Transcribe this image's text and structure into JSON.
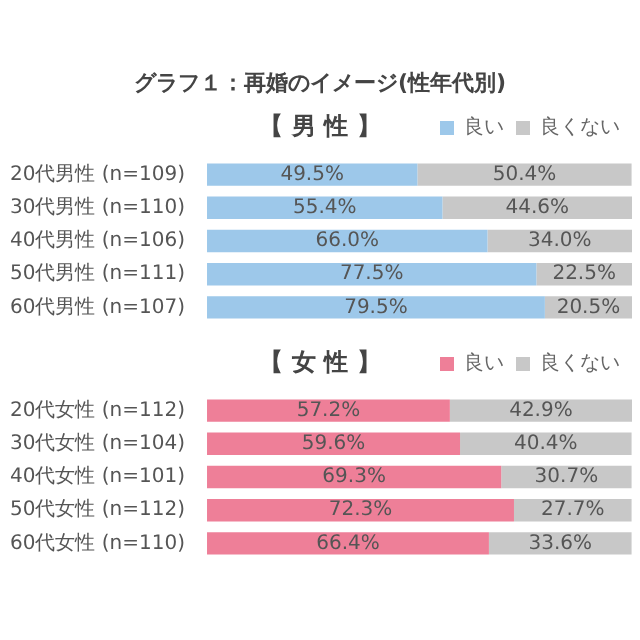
{
  "chart_data": [
    {
      "type": "bar",
      "title": "グラフ１：再婚のイメージ(性年代別)",
      "subtitle": "【 男 性 】",
      "orientation": "horizontal",
      "stacked": true,
      "legend": "top right",
      "categories": [
        "20代男性 (n=109)",
        "30代男性 (n=110)",
        "40代男性 (n=106)",
        "50代男性 (n=111)",
        "60代男性 (n=107)"
      ],
      "series": [
        {
          "name": "良い",
          "color": "#9dc8ea",
          "values": [
            49.5,
            55.4,
            66.0,
            77.5,
            79.5
          ],
          "value_labels": [
            "49.5%",
            "55.4%",
            "66.0%",
            "77.5%",
            "79.5%"
          ]
        },
        {
          "name": "良くない",
          "color": "#c8c8c8",
          "values": [
            50.4,
            44.6,
            34.0,
            22.5,
            20.5
          ],
          "value_labels": [
            "50.4%",
            "44.6%",
            "34.0%",
            "22.5%",
            "20.5%"
          ]
        }
      ]
    },
    {
      "type": "bar",
      "subtitle": "【 女 性 】",
      "orientation": "horizontal",
      "stacked": true,
      "legend": "top right",
      "categories": [
        "20代女性 (n=112)",
        "30代女性 (n=104)",
        "40代女性 (n=101)",
        "50代女性 (n=112)",
        "60代女性 (n=110)"
      ],
      "series": [
        {
          "name": "良い",
          "color": "#ee7f98",
          "values": [
            57.2,
            59.6,
            69.3,
            72.3,
            66.4
          ],
          "value_labels": [
            "57.2%",
            "59.6%",
            "69.3%",
            "72.3%",
            "66.4%"
          ]
        },
        {
          "name": "良くない",
          "color": "#c8c8c8",
          "values": [
            42.9,
            40.4,
            30.7,
            27.7,
            33.6
          ],
          "value_labels": [
            "42.9%",
            "40.4%",
            "30.7%",
            "27.7%",
            "33.6%"
          ]
        }
      ]
    }
  ]
}
